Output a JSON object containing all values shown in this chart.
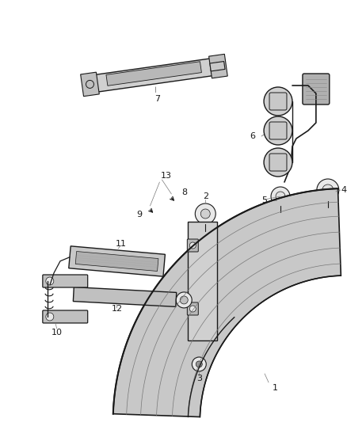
{
  "bg_color": "#ffffff",
  "figsize": [
    4.38,
    5.33
  ],
  "dpi": 100,
  "color_main": "#1a1a1a",
  "color_fill": "#d0d0d0",
  "color_fill2": "#e8e8e8",
  "color_line": "#555555",
  "color_label_line": "#777777"
}
